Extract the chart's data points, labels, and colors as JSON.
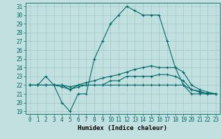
{
  "title": "",
  "xlabel": "Humidex (Indice chaleur)",
  "bg_color": "#c2e0e0",
  "plot_bg_color": "#c2e0e0",
  "line_color": "#006868",
  "grid_color": "#a0c8c8",
  "xlabel_bg": "#5a9a9a",
  "xlabel_color": "#000000",
  "xlim": [
    -0.5,
    23.5
  ],
  "ylim": [
    18.7,
    31.4
  ],
  "yticks": [
    19,
    20,
    21,
    22,
    23,
    24,
    25,
    26,
    27,
    28,
    29,
    30,
    31
  ],
  "xticks": [
    0,
    1,
    2,
    3,
    4,
    5,
    6,
    7,
    8,
    9,
    10,
    11,
    12,
    13,
    14,
    15,
    16,
    17,
    18,
    19,
    20,
    21,
    22,
    23
  ],
  "lines": [
    {
      "x": [
        0,
        1,
        2,
        3,
        4,
        5,
        6,
        7,
        8,
        9,
        10,
        11,
        12,
        13,
        14,
        15,
        16,
        17,
        18,
        19,
        20,
        21,
        22,
        23
      ],
      "y": [
        22,
        22,
        23,
        22,
        20,
        19,
        21,
        21,
        25,
        27,
        29,
        30,
        31,
        30.5,
        30,
        30,
        30,
        27,
        24,
        22,
        21,
        21,
        21,
        21
      ]
    },
    {
      "x": [
        0,
        1,
        2,
        3,
        4,
        5,
        6,
        7,
        8,
        9,
        10,
        11,
        12,
        13,
        14,
        15,
        16,
        17,
        18,
        19,
        20,
        21,
        22,
        23
      ],
      "y": [
        22,
        22,
        22,
        22,
        22,
        21.5,
        22,
        22.3,
        22.5,
        22.8,
        23,
        23.2,
        23.5,
        23.8,
        24,
        24.2,
        24,
        24,
        24,
        23.5,
        22,
        21.5,
        21.2,
        21
      ]
    },
    {
      "x": [
        0,
        1,
        2,
        3,
        4,
        5,
        6,
        7,
        8,
        9,
        10,
        11,
        12,
        13,
        14,
        15,
        16,
        17,
        18,
        19,
        20,
        21,
        22,
        23
      ],
      "y": [
        22,
        22,
        22,
        22,
        21.8,
        21.5,
        21.8,
        22,
        22,
        22,
        22.5,
        22.5,
        23,
        23,
        23,
        23,
        23.2,
        23.2,
        23,
        22.5,
        21.5,
        21.2,
        21,
        21
      ]
    },
    {
      "x": [
        0,
        1,
        2,
        3,
        4,
        5,
        6,
        7,
        8,
        9,
        10,
        11,
        12,
        13,
        14,
        15,
        16,
        17,
        18,
        19,
        20,
        21,
        22,
        23
      ],
      "y": [
        22,
        22,
        22,
        22,
        22,
        21.8,
        22,
        22,
        22,
        22,
        22,
        22,
        22,
        22,
        22,
        22,
        22,
        22,
        22,
        22,
        21.5,
        21.3,
        21,
        21
      ]
    }
  ],
  "tick_fontsize": 5.5,
  "marker_size": 2.5,
  "lw": 0.8
}
